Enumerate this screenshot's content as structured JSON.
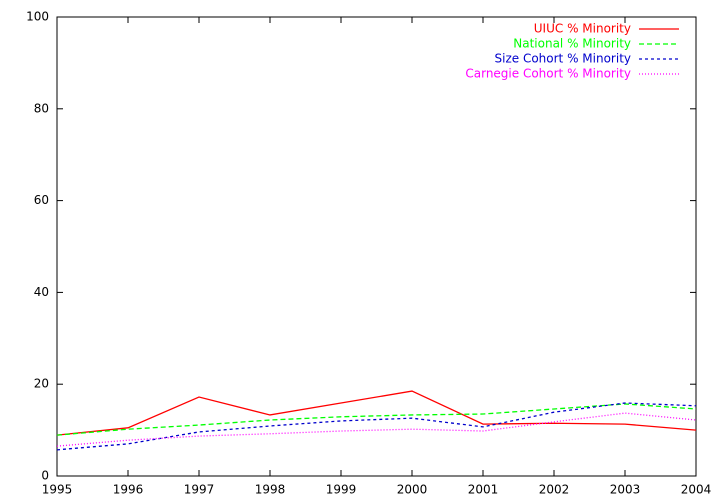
{
  "chart_data": {
    "type": "line",
    "x": [
      1995,
      1996,
      1997,
      1998,
      1999,
      2000,
      2001,
      2002,
      2003,
      2004
    ],
    "series": [
      {
        "name": "UIUC % Minority",
        "color": "#ff0000",
        "values": [
          8.9,
          10.5,
          17.2,
          13.3,
          15.9,
          18.5,
          11.3,
          11.5,
          11.3,
          10.0
        ]
      },
      {
        "name": "National % Minority",
        "color": "#00ff00",
        "values": [
          8.9,
          10.2,
          11.1,
          12.2,
          12.9,
          13.3,
          13.5,
          14.6,
          15.7,
          14.6
        ]
      },
      {
        "name": "Size Cohort % Minority",
        "color": "#0000cc",
        "values": [
          5.7,
          7.0,
          9.6,
          10.9,
          12.0,
          12.6,
          10.7,
          13.9,
          15.9,
          15.3
        ]
      },
      {
        "name": "Carnegie Cohort % Minority",
        "color": "#ff00ff",
        "values": [
          6.5,
          7.8,
          8.7,
          9.2,
          9.8,
          10.2,
          9.8,
          11.8,
          13.7,
          12.2
        ]
      }
    ],
    "xlim": [
      1995,
      2004
    ],
    "xticks": [
      1995,
      1996,
      1997,
      1998,
      1999,
      2000,
      2001,
      2002,
      2003,
      2004
    ],
    "ylim": [
      0,
      100
    ],
    "yticks": [
      0,
      20,
      40,
      60,
      80,
      100
    ],
    "legend": "top-right"
  }
}
